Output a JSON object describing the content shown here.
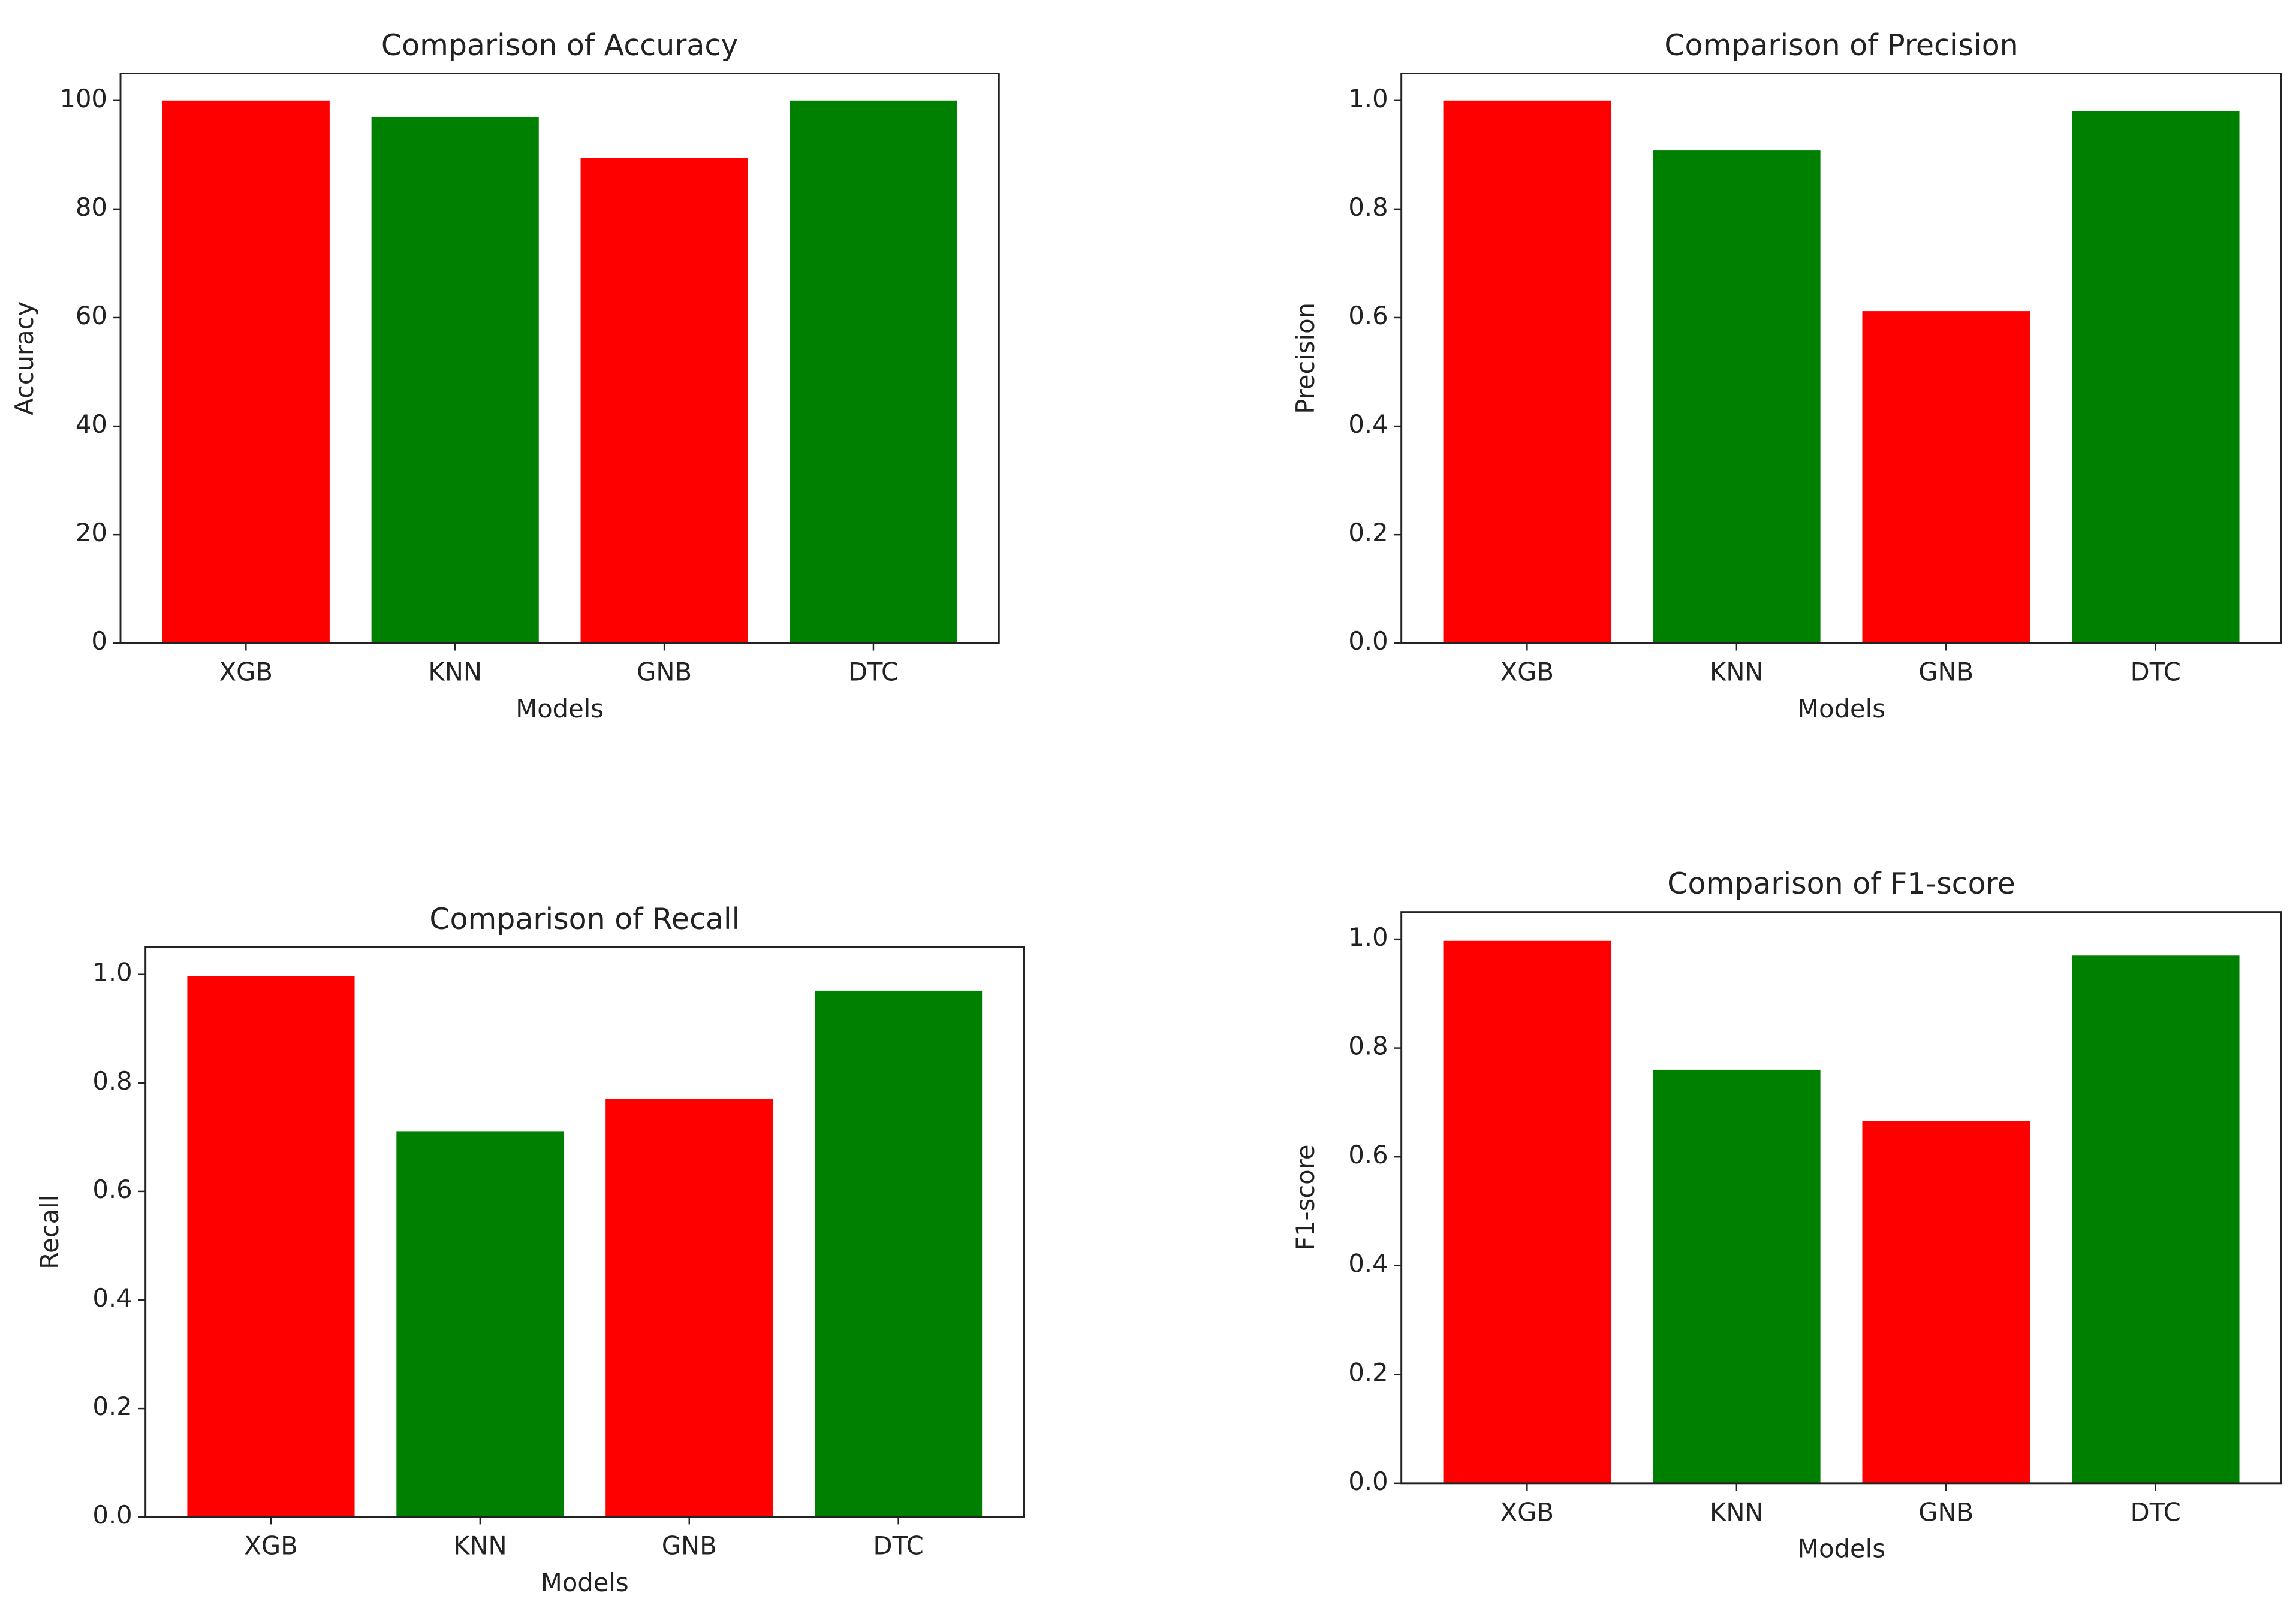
{
  "chart_data": [
    {
      "type": "bar",
      "title": "Comparison of Accuracy",
      "xlabel": "Models",
      "ylabel": "Accuracy",
      "categories": [
        "XGB",
        "KNN",
        "GNB",
        "DTC"
      ],
      "values": [
        100,
        97,
        89.4,
        100
      ],
      "colors": [
        "#ff0000",
        "#008000",
        "#ff0000",
        "#008000"
      ],
      "ylim": [
        0,
        105
      ],
      "yticks": [
        0,
        20,
        40,
        60,
        80,
        100
      ]
    },
    {
      "type": "bar",
      "title": "Comparison of Precision",
      "xlabel": "Models",
      "ylabel": "Precision",
      "categories": [
        "XGB",
        "KNN",
        "GNB",
        "DTC"
      ],
      "values": [
        1.0,
        0.908,
        0.612,
        0.981
      ],
      "colors": [
        "#ff0000",
        "#008000",
        "#ff0000",
        "#008000"
      ],
      "ylim": [
        0,
        1.05
      ],
      "yticks": [
        {
          "value": 0,
          "label": "0.0"
        },
        0.2,
        0.4,
        0.6,
        0.8,
        {
          "value": 1,
          "label": "1.0"
        }
      ]
    },
    {
      "type": "bar",
      "title": "Comparison of Recall",
      "xlabel": "Models",
      "ylabel": "Recall",
      "categories": [
        "XGB",
        "KNN",
        "GNB",
        "DTC"
      ],
      "values": [
        0.997,
        0.711,
        0.77,
        0.97
      ],
      "colors": [
        "#ff0000",
        "#008000",
        "#ff0000",
        "#008000"
      ],
      "ylim": [
        0,
        1.05
      ],
      "yticks": [
        {
          "value": 0,
          "label": "0.0"
        },
        0.2,
        0.4,
        0.6,
        0.8,
        {
          "value": 1,
          "label": "1.0"
        }
      ]
    },
    {
      "type": "bar",
      "title": "Comparison of F1-score",
      "xlabel": "Models",
      "ylabel": "F1-score",
      "categories": [
        "XGB",
        "KNN",
        "GNB",
        "DTC"
      ],
      "values": [
        0.997,
        0.76,
        0.666,
        0.97
      ],
      "colors": [
        "#ff0000",
        "#008000",
        "#ff0000",
        "#008000"
      ],
      "ylim": [
        0,
        1.05
      ],
      "yticks": [
        {
          "value": 0,
          "label": "0.0"
        },
        0.2,
        0.4,
        0.6,
        0.8,
        {
          "value": 1,
          "label": "1.0"
        }
      ]
    }
  ]
}
